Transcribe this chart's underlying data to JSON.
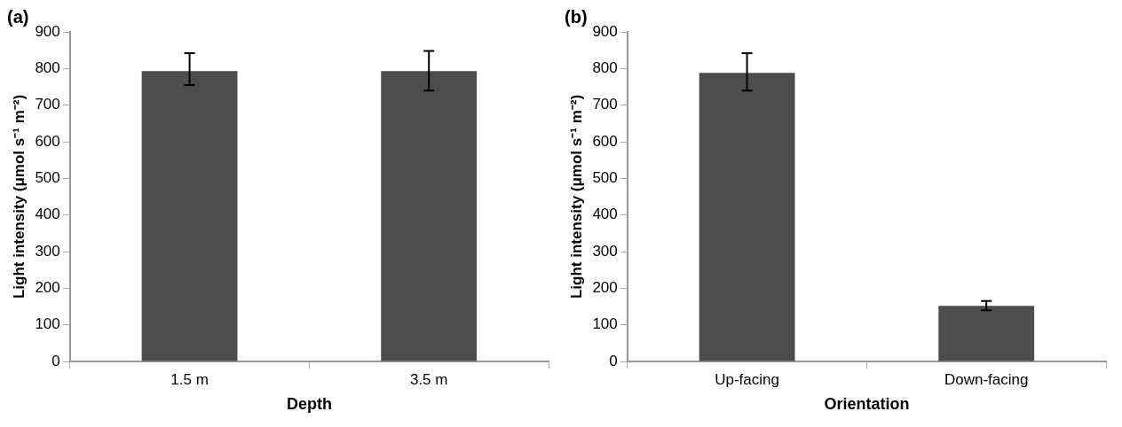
{
  "chart_data": [
    {
      "type": "bar",
      "title": "(a)",
      "xlabel": "Depth",
      "ylabel": "Light intensity (μmol s⁻¹ m⁻²)",
      "categories": [
        "1.5 m",
        "3.5 m"
      ],
      "values": [
        793,
        793
      ],
      "errors": [
        [
          755,
          842
        ],
        [
          740,
          848
        ]
      ],
      "color": "#4d4d4d",
      "ylim": [
        0,
        900
      ],
      "yticks": [
        0,
        100,
        200,
        300,
        400,
        500,
        600,
        700,
        800,
        900
      ],
      "grid": false
    },
    {
      "type": "bar",
      "title": "(b)",
      "xlabel": "Orientation",
      "ylabel": "Light intensity (μmol s⁻¹ m⁻²)",
      "categories": [
        "Up-facing",
        "Down-facing"
      ],
      "values": [
        788,
        152
      ],
      "errors": [
        [
          740,
          842
        ],
        [
          140,
          165
        ]
      ],
      "color": "#4d4d4d",
      "ylim": [
        0,
        900
      ],
      "yticks": [
        0,
        100,
        200,
        300,
        400,
        500,
        600,
        700,
        800,
        900
      ],
      "grid": false
    }
  ]
}
